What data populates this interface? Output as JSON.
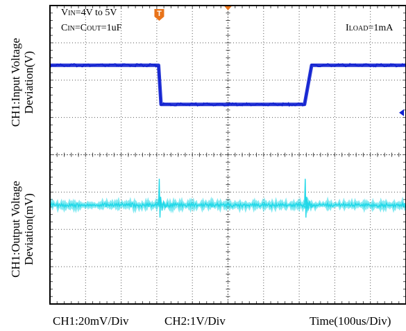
{
  "chart_data": {
    "type": "line",
    "y_axis_labels": {
      "upper": [
        "CH1:Input Voltage",
        "Deviation(V)"
      ],
      "lower": [
        "CH1:Output Voltage",
        "Deviation(mV)"
      ]
    },
    "bottom_labels": {
      "ch1_scale": "CH1:20mV/Div",
      "ch2_scale": "CH2:1V/Div",
      "time_scale": "Time(100us/Div)"
    },
    "annotations": {
      "vin": {
        "main": "V",
        "sub": "IN",
        "rest": "=4V to 5V"
      },
      "cin": {
        "main1": "C",
        "sub1": "IN",
        "mid": "=C",
        "sub2": "OUT",
        "rest": "=1uF"
      },
      "iload": {
        "main": "I",
        "sub": "LOAD",
        "rest": "=1mA"
      }
    },
    "markers": {
      "trigger_label": "T"
    },
    "grid": {
      "divisions_x": 10,
      "divisions_y": 8,
      "on": true
    },
    "series": [
      {
        "name": "",
        "channel": "input",
        "color": "#1020d0",
        "time_div": [
          0,
          3.05,
          3.12,
          7.15,
          7.35,
          10
        ],
        "level_div": [
          1.6,
          1.6,
          2.65,
          2.65,
          1.6,
          1.6
        ]
      },
      {
        "name": "",
        "channel": "output",
        "color": "#20d8e8",
        "baseline_div": 5.35,
        "transients_div": [
          3.05,
          7.15
        ]
      }
    ],
    "colors": {
      "trigger_marker": "#e8731a",
      "position_marker": "#1020d0"
    }
  }
}
